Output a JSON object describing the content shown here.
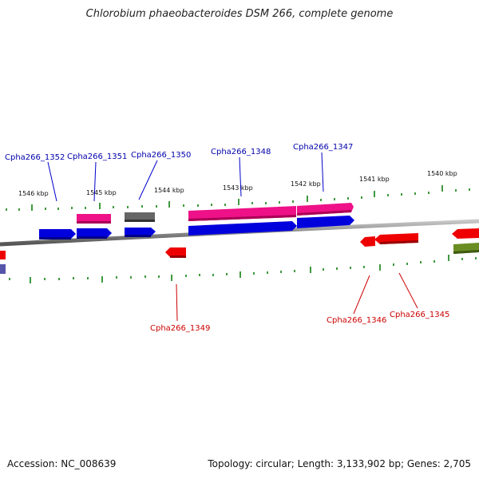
{
  "header": {
    "title": "Chlorobium phaeobacteroides DSM 266, complete genome"
  },
  "footer": {
    "accession": "Accession: NC_008639",
    "summary": "Topology: circular; Length: 3,133,902 bp; Genes: 2,705"
  },
  "scale": {
    "labels": [
      "1546 kbp",
      "1545 kbp",
      "1544 kbp",
      "1543 kbp",
      "1542 kbp",
      "1541 kbp",
      "1540 kbp"
    ]
  },
  "genes": {
    "forward_labels": [
      "Cpha266_1352",
      "Cpha266_1351",
      "Cpha266_1350",
      "Cpha266_1348",
      "Cpha266_1347"
    ],
    "reverse_labels": [
      "Cpha266_1349",
      "Cpha266_1346",
      "Cpha266_1345"
    ]
  },
  "colors": {
    "forward_label": "#0000aa",
    "reverse_label": "#cc0000",
    "blue_gene": "#0000dd",
    "pink_gene": "#ee1188",
    "gray_gene": "#666666",
    "red_gene": "#ee0000",
    "olive_gene": "#6b8e23",
    "tick_green": "#007700",
    "backbone": "#888888"
  }
}
